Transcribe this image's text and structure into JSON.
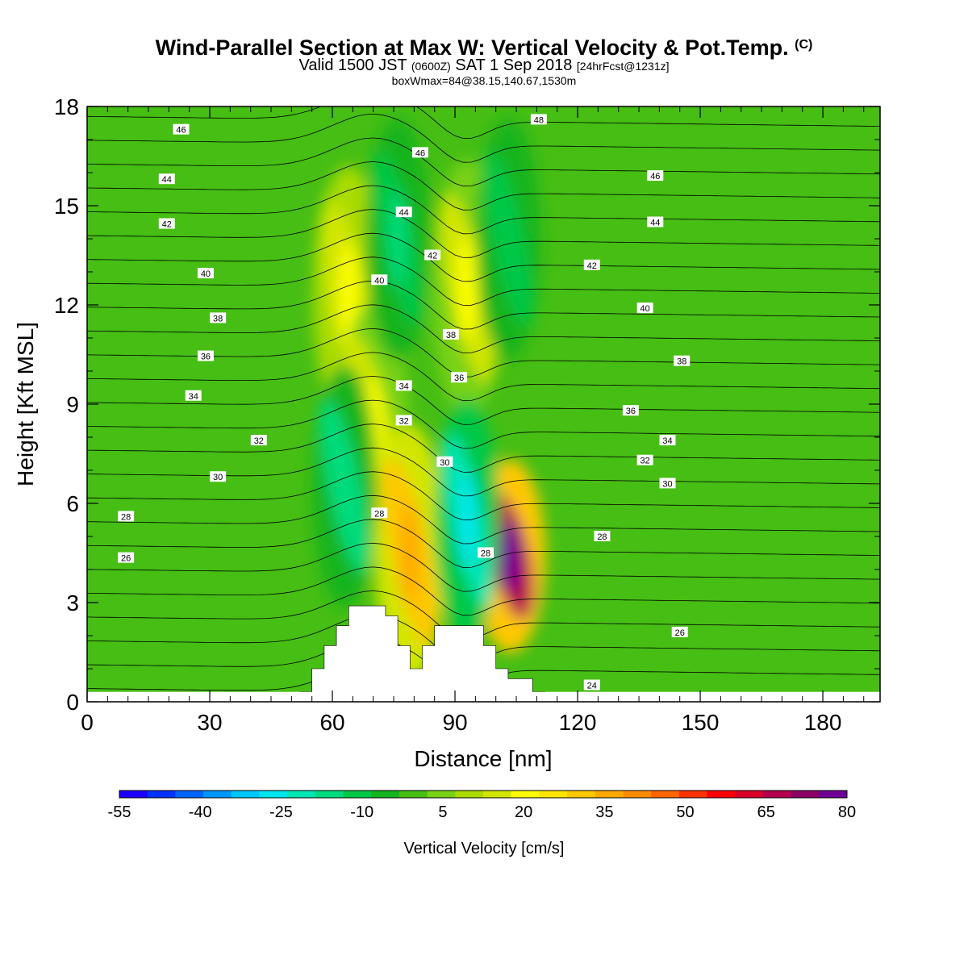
{
  "header": {
    "title_main": "Wind-Parallel Section at Max W: Vertical Velocity & Pot.Temp.",
    "title_copyright": "(C)",
    "valid_prefix": "Valid 1500 JST",
    "valid_utc": "(0600Z)",
    "valid_date": "SAT 1 Sep 2018",
    "valid_fcst": "[24hrFcst@1231z]",
    "box_info": "boxWmax=84@38.15,140.67,1530m"
  },
  "chart_data": {
    "type": "heatmap",
    "xlabel": "Distance [nm]",
    "ylabel": "Height [Kft MSL]",
    "xlim": [
      0,
      194
    ],
    "ylim": [
      0,
      18
    ],
    "x_ticks": [
      0,
      30,
      60,
      90,
      120,
      150,
      180
    ],
    "y_ticks": [
      0,
      3,
      6,
      9,
      12,
      15,
      18
    ],
    "colorbar": {
      "label": "Vertical Velocity [cm/s]",
      "tick_labels": [
        -55,
        -40,
        -25,
        -10,
        5,
        20,
        35,
        50,
        65,
        80
      ],
      "colors": [
        "#1e00ff",
        "#0032ff",
        "#0064ff",
        "#0096ff",
        "#00c8ff",
        "#00e6f0",
        "#00e6b4",
        "#00dc7d",
        "#00c846",
        "#14b41e",
        "#46be14",
        "#78d214",
        "#aadc00",
        "#d2e600",
        "#ffff00",
        "#ffe600",
        "#ffc800",
        "#ffaa00",
        "#ff8c00",
        "#ff6400",
        "#ff3200",
        "#ff0000",
        "#dc0028",
        "#b40050",
        "#8c0064",
        "#6e0096"
      ]
    },
    "w_features": [
      {
        "name": "updraft",
        "x": 64,
        "y": 12.3,
        "peak": 22
      },
      {
        "name": "updraft",
        "x": 70,
        "y": 8.2,
        "peak": 20
      },
      {
        "name": "updraft",
        "x": 79,
        "y": 4.5,
        "peak": 38
      },
      {
        "name": "updraft",
        "x": 93,
        "y": 12.5,
        "peak": 20
      },
      {
        "name": "updraft",
        "x": 103.5,
        "y": 4.4,
        "peak": 84
      },
      {
        "name": "downdraft",
        "x": 63,
        "y": 6.5,
        "peak": -18
      },
      {
        "name": "downdraft",
        "x": 76,
        "y": 14,
        "peak": -16
      },
      {
        "name": "downdraft",
        "x": 93,
        "y": 5.5,
        "peak": -26
      },
      {
        "name": "downdraft",
        "x": 103,
        "y": 14,
        "peak": -12
      }
    ],
    "terrain": [
      {
        "x": 52,
        "h": 0.3
      },
      {
        "x": 55,
        "h": 1.0
      },
      {
        "x": 58,
        "h": 1.7
      },
      {
        "x": 61,
        "h": 2.3
      },
      {
        "x": 64,
        "h": 2.9
      },
      {
        "x": 67,
        "h": 2.9
      },
      {
        "x": 70,
        "h": 2.9
      },
      {
        "x": 73,
        "h": 2.6
      },
      {
        "x": 76,
        "h": 1.7
      },
      {
        "x": 79,
        "h": 1.0
      },
      {
        "x": 82,
        "h": 1.7
      },
      {
        "x": 85,
        "h": 2.3
      },
      {
        "x": 88,
        "h": 2.3
      },
      {
        "x": 91,
        "h": 2.3
      },
      {
        "x": 94,
        "h": 2.3
      },
      {
        "x": 97,
        "h": 1.7
      },
      {
        "x": 100,
        "h": 1.0
      },
      {
        "x": 103,
        "h": 0.7
      },
      {
        "x": 106,
        "h": 0.7
      },
      {
        "x": 109,
        "h": 0.3
      },
      {
        "x": 112,
        "h": 0.0
      }
    ],
    "theta_labels": [
      {
        "text": "46",
        "x": 23,
        "y": 17.3
      },
      {
        "text": "44",
        "x": 19.5,
        "y": 15.8
      },
      {
        "text": "42",
        "x": 19.5,
        "y": 14.45
      },
      {
        "text": "40",
        "x": 29,
        "y": 12.95
      },
      {
        "text": "38",
        "x": 32,
        "y": 11.6
      },
      {
        "text": "36",
        "x": 29,
        "y": 10.45
      },
      {
        "text": "34",
        "x": 26,
        "y": 9.25
      },
      {
        "text": "32",
        "x": 42,
        "y": 7.9
      },
      {
        "text": "30",
        "x": 32,
        "y": 6.8
      },
      {
        "text": "28",
        "x": 9.5,
        "y": 5.6
      },
      {
        "text": "26",
        "x": 9.5,
        "y": 4.35
      },
      {
        "text": "48",
        "x": 110.5,
        "y": 17.6
      },
      {
        "text": "46",
        "x": 81.5,
        "y": 16.6
      },
      {
        "text": "44",
        "x": 77.5,
        "y": 14.8
      },
      {
        "text": "42",
        "x": 84.5,
        "y": 13.5
      },
      {
        "text": "40",
        "x": 71.5,
        "y": 12.75
      },
      {
        "text": "38",
        "x": 89,
        "y": 11.1
      },
      {
        "text": "36",
        "x": 91,
        "y": 9.8
      },
      {
        "text": "34",
        "x": 77.5,
        "y": 9.55
      },
      {
        "text": "32",
        "x": 77.5,
        "y": 8.5
      },
      {
        "text": "30",
        "x": 87.5,
        "y": 7.25
      },
      {
        "text": "28",
        "x": 71.5,
        "y": 5.7
      },
      {
        "text": "28",
        "x": 97.5,
        "y": 4.5
      },
      {
        "text": "46",
        "x": 139,
        "y": 15.9
      },
      {
        "text": "44",
        "x": 139,
        "y": 14.5
      },
      {
        "text": "42",
        "x": 123.5,
        "y": 13.2
      },
      {
        "text": "40",
        "x": 136.5,
        "y": 11.9
      },
      {
        "text": "38",
        "x": 145.5,
        "y": 10.3
      },
      {
        "text": "36",
        "x": 133,
        "y": 8.8
      },
      {
        "text": "34",
        "x": 142,
        "y": 7.9
      },
      {
        "text": "32",
        "x": 136.5,
        "y": 7.3
      },
      {
        "text": "30",
        "x": 142,
        "y": 6.6
      },
      {
        "text": "28",
        "x": 126,
        "y": 5.0
      },
      {
        "text": "26",
        "x": 145,
        "y": 2.1
      },
      {
        "text": "24",
        "x": 123.5,
        "y": 0.5
      }
    ]
  }
}
